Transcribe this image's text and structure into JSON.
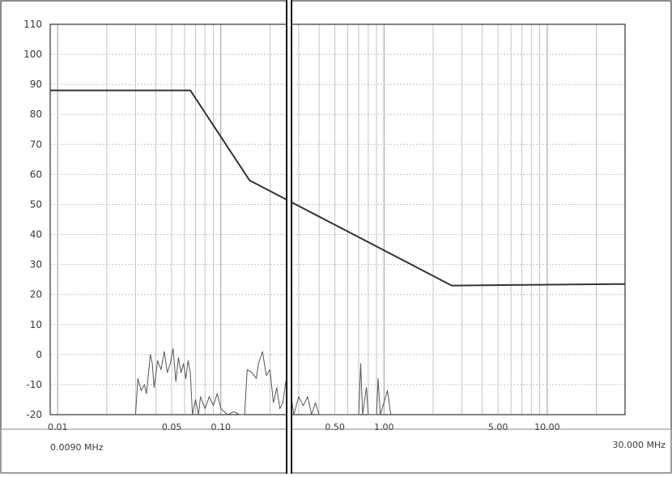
{
  "chart_data": {
    "type": "line",
    "x_scale": "log",
    "xlim": [
      0.009,
      30
    ],
    "ylim": [
      -20,
      110
    ],
    "y_ticks": [
      110,
      100,
      90,
      80,
      70,
      60,
      50,
      40,
      30,
      20,
      10,
      0,
      -10,
      -20
    ],
    "x_ticks": [
      {
        "value": 0.01,
        "label": "0.01"
      },
      {
        "value": 0.05,
        "label": "0.05"
      },
      {
        "value": 0.1,
        "label": "0.10"
      },
      {
        "value": 0.5,
        "label": "0.50"
      },
      {
        "value": 1,
        "label": "1.00"
      },
      {
        "value": 5,
        "label": "5.00"
      },
      {
        "value": 10,
        "label": "10.00"
      }
    ],
    "x_start_label": "0.0090 MHz",
    "x_end_label": "30.000 MHz",
    "grid": true,
    "cursor_x": 0.262,
    "series": [
      {
        "name": "",
        "color": "#333333",
        "points": [
          [
            0.009,
            88
          ],
          [
            0.065,
            88
          ],
          [
            0.15,
            58
          ],
          [
            2.6,
            23
          ],
          [
            30,
            23.5
          ]
        ]
      },
      {
        "name": "",
        "color": "#555555",
        "points": [
          [
            0.03,
            -20
          ],
          [
            0.031,
            -8
          ],
          [
            0.0325,
            -12
          ],
          [
            0.034,
            -10
          ],
          [
            0.035,
            -13
          ],
          [
            0.037,
            0
          ],
          [
            0.038,
            -3
          ],
          [
            0.039,
            -11
          ],
          [
            0.041,
            -2
          ],
          [
            0.043,
            -5
          ],
          [
            0.045,
            1
          ],
          [
            0.047,
            -6
          ],
          [
            0.049,
            -3
          ],
          [
            0.051,
            2
          ],
          [
            0.053,
            -9
          ],
          [
            0.055,
            -1
          ],
          [
            0.057,
            -6
          ],
          [
            0.059,
            -3
          ],
          [
            0.061,
            -8
          ],
          [
            0.063,
            -2
          ],
          [
            0.065,
            -6
          ],
          [
            0.067,
            -20
          ],
          [
            0.07,
            -15
          ],
          [
            0.073,
            -20
          ],
          [
            0.075,
            -14
          ],
          [
            0.08,
            -18
          ],
          [
            0.085,
            -14
          ],
          [
            0.09,
            -17
          ],
          [
            0.095,
            -13
          ],
          [
            0.1,
            -18
          ],
          [
            0.11,
            -20
          ],
          [
            0.12,
            -19
          ],
          [
            0.13,
            -20
          ],
          [
            0.14,
            -20
          ],
          [
            0.145,
            -5
          ],
          [
            0.155,
            -6
          ],
          [
            0.165,
            -8
          ],
          [
            0.17,
            -3
          ],
          [
            0.18,
            1
          ],
          [
            0.19,
            -7
          ],
          [
            0.2,
            -5
          ],
          [
            0.21,
            -16
          ],
          [
            0.22,
            -11
          ],
          [
            0.23,
            -18
          ],
          [
            0.24,
            -16
          ],
          [
            0.25,
            -9
          ],
          [
            0.26,
            -17
          ],
          [
            0.27,
            -14
          ],
          [
            0.28,
            -20
          ],
          [
            0.3,
            -14
          ],
          [
            0.32,
            -17
          ],
          [
            0.34,
            -14
          ],
          [
            0.36,
            -20
          ],
          [
            0.38,
            -16
          ],
          [
            0.4,
            -20
          ],
          [
            0.7,
            -20
          ],
          [
            0.72,
            -3
          ],
          [
            0.74,
            -20
          ],
          [
            0.78,
            -11
          ],
          [
            0.8,
            -20
          ],
          [
            0.9,
            -20
          ],
          [
            0.92,
            -8
          ],
          [
            0.95,
            -20
          ],
          [
            1.05,
            -12
          ],
          [
            1.1,
            -20
          ]
        ]
      }
    ]
  }
}
